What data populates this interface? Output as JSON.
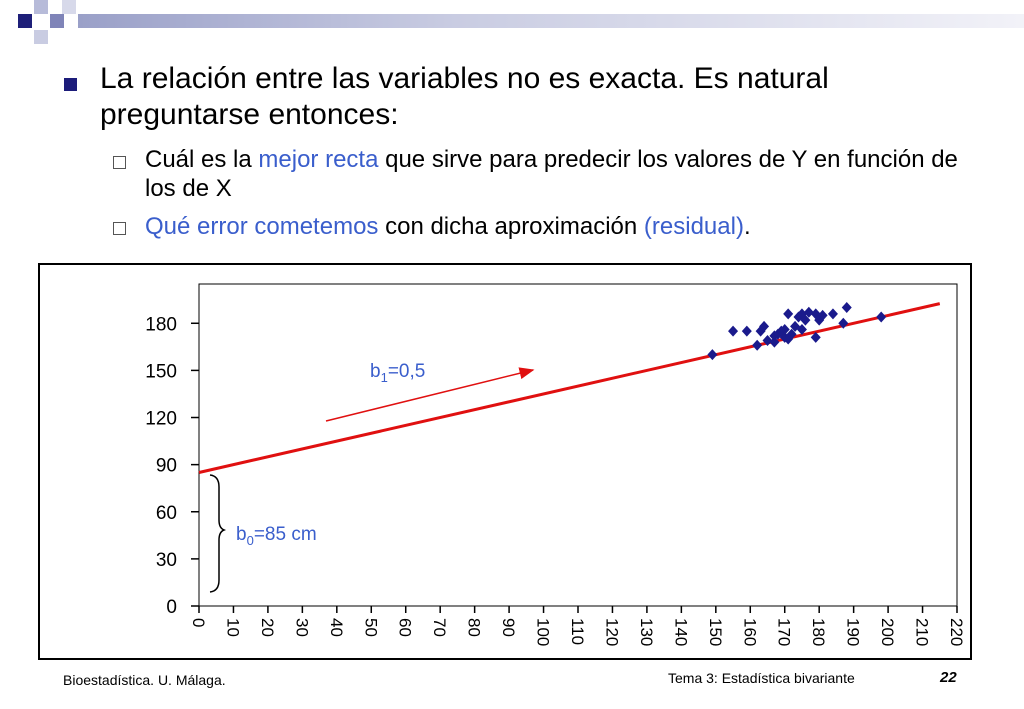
{
  "slide": {
    "bullet_main": "La relación entre las variables no es exacta. Es natural preguntarse entonces:",
    "sub1": [
      {
        "text": " Cuál es la ",
        "color": "black"
      },
      {
        "text": "mejor recta",
        "color": "blue"
      },
      {
        "text": " que sirve para predecir los valores de Y en función de los de X",
        "color": "black"
      }
    ],
    "sub2": [
      {
        "text": "Qué error cometemos",
        "color": "blue"
      },
      {
        "text": " con dicha aproximación ",
        "color": "black"
      },
      {
        "text": "(residual)",
        "color": "blue"
      },
      {
        "text": ".",
        "color": "black"
      }
    ]
  },
  "footer": {
    "left": "Bioestadística. U. Málaga.",
    "middle": "Tema 3: Estadística bivariante",
    "page": "22"
  },
  "colors": {
    "accent": "#3a5ecc",
    "line": "#e01010",
    "points": "#1a1a8c",
    "bullet": "#1c1c7a"
  },
  "chart_data": {
    "type": "scatter",
    "x_ticks": [
      0,
      10,
      20,
      30,
      40,
      50,
      60,
      70,
      80,
      90,
      100,
      110,
      120,
      130,
      140,
      150,
      160,
      170,
      180,
      190,
      200,
      210,
      220
    ],
    "y_ticks": [
      0,
      30,
      60,
      90,
      120,
      150,
      180
    ],
    "xlim": [
      0,
      220
    ],
    "ylim": [
      0,
      205
    ],
    "points": [
      [
        149,
        160
      ],
      [
        155,
        175
      ],
      [
        159,
        175
      ],
      [
        162,
        166
      ],
      [
        163,
        175
      ],
      [
        164,
        178
      ],
      [
        165,
        169
      ],
      [
        167,
        168
      ],
      [
        167,
        172
      ],
      [
        168,
        173
      ],
      [
        169,
        175
      ],
      [
        170,
        171
      ],
      [
        170,
        176
      ],
      [
        171,
        170
      ],
      [
        171,
        186
      ],
      [
        172,
        173
      ],
      [
        173,
        178
      ],
      [
        174,
        184
      ],
      [
        175,
        176
      ],
      [
        175,
        186
      ],
      [
        176,
        182
      ],
      [
        177,
        187
      ],
      [
        179,
        186
      ],
      [
        179,
        171
      ],
      [
        180,
        182
      ],
      [
        181,
        185
      ],
      [
        184,
        186
      ],
      [
        187,
        180
      ],
      [
        188,
        190
      ],
      [
        198,
        184
      ]
    ],
    "regression_line": {
      "intercept": 85,
      "slope": 0.5,
      "x_range": [
        0,
        215
      ]
    },
    "annotations": {
      "slope": {
        "base": "b",
        "sub": "1",
        "tail": "=0,5"
      },
      "intercept": {
        "base": "b",
        "sub": "0",
        "tail": "=85 cm"
      }
    }
  }
}
